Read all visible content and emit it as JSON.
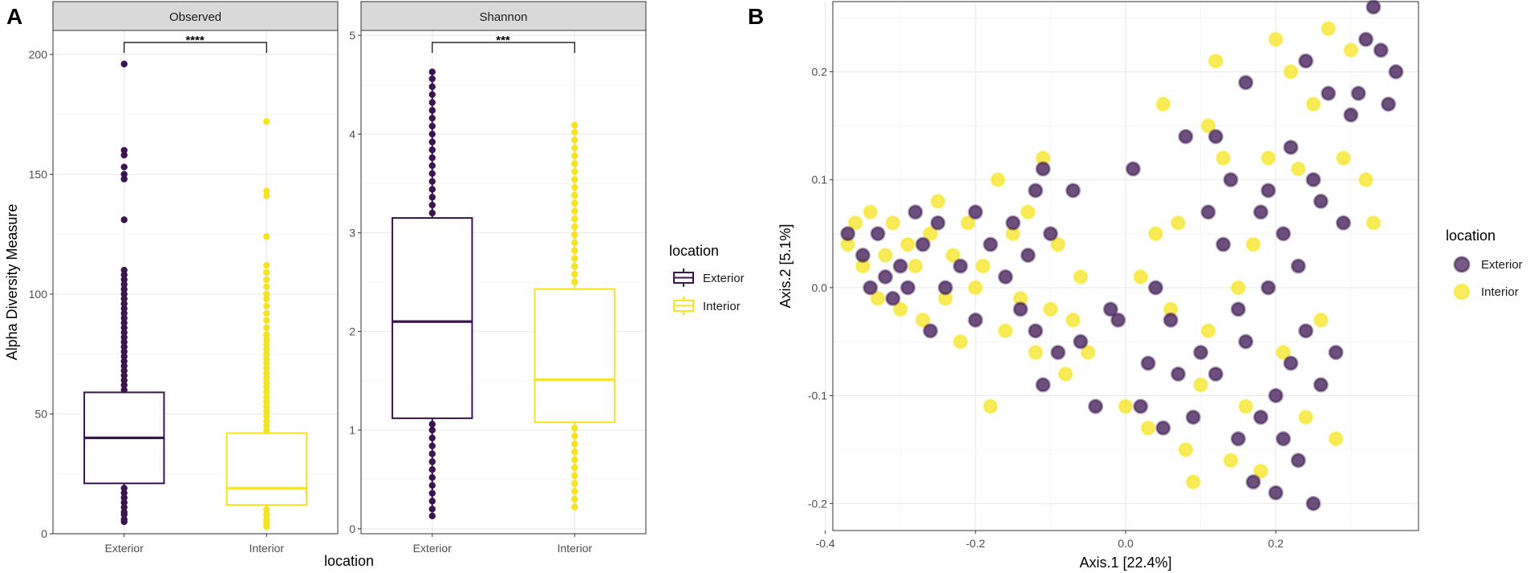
{
  "colors": {
    "exterior": "#3b1450",
    "interior": "#f5e41f",
    "grid": "#ebebeb",
    "strip_bg": "#d9d9d9",
    "border": "#333333"
  },
  "panel_a": {
    "label": "A",
    "y_axis_title": "Alpha Diversity Measure",
    "x_axis_title": "location",
    "legend": {
      "title": "location",
      "items": [
        "Exterior",
        "Interior"
      ]
    }
  },
  "panel_b": {
    "label": "B",
    "legend": {
      "title": "location",
      "items": [
        "Exterior",
        "Interior"
      ]
    }
  },
  "chart_data": [
    {
      "type": "box",
      "title": "Observed",
      "categories": [
        "Exterior",
        "Interior"
      ],
      "ylabel": "Alpha Diversity Measure",
      "xlabel": "location",
      "ylim": [
        0,
        210
      ],
      "yticks": [
        0,
        50,
        100,
        150,
        200
      ],
      "tick_labels": [
        "0",
        "50",
        "100",
        "150",
        "200"
      ],
      "boxes": [
        {
          "name": "Exterior",
          "q1": 21,
          "median": 40,
          "q3": 59,
          "whisker_low": 5,
          "whisker_high": 95,
          "outliers": [
            5,
            6,
            8,
            9,
            11,
            13,
            15,
            17,
            19,
            60,
            62,
            64,
            66,
            68,
            70,
            72,
            74,
            76,
            78,
            80,
            82,
            84,
            86,
            88,
            90,
            92,
            94,
            96,
            98,
            100,
            102,
            104,
            106,
            108,
            110,
            131,
            148,
            150,
            153,
            158,
            160,
            196
          ]
        },
        {
          "name": "Interior",
          "q1": 12,
          "median": 19,
          "q3": 42,
          "whisker_low": 3,
          "whisker_high": 85,
          "outliers": [
            3,
            4,
            5,
            6,
            8,
            10,
            43,
            45,
            47,
            49,
            51,
            53,
            55,
            57,
            59,
            61,
            63,
            65,
            67,
            69,
            71,
            73,
            75,
            77,
            79,
            81,
            83,
            86,
            89,
            92,
            95,
            98,
            100,
            103,
            106,
            109,
            112,
            124,
            141,
            143,
            172
          ]
        }
      ],
      "significance": "****"
    },
    {
      "type": "box",
      "title": "Shannon",
      "categories": [
        "Exterior",
        "Interior"
      ],
      "ylim": [
        -0.05,
        5.05
      ],
      "yticks": [
        0,
        1,
        2,
        3,
        4,
        5
      ],
      "tick_labels": [
        "0",
        "1",
        "2",
        "3",
        "4",
        "5"
      ],
      "boxes": [
        {
          "name": "Exterior",
          "q1": 1.12,
          "median": 2.1,
          "q3": 3.15,
          "whisker_low": 0.13,
          "whisker_high": 4.63,
          "outliers": [
            0.13,
            0.2,
            0.28,
            0.36,
            0.44,
            0.52,
            0.6,
            0.68,
            0.76,
            0.84,
            0.92,
            1.0,
            1.06,
            3.2,
            3.28,
            3.36,
            3.44,
            3.52,
            3.6,
            3.68,
            3.76,
            3.84,
            3.92,
            4.0,
            4.08,
            4.16,
            4.24,
            4.32,
            4.4,
            4.48,
            4.56,
            4.63
          ]
        },
        {
          "name": "Interior",
          "q1": 1.08,
          "median": 1.51,
          "q3": 2.43,
          "whisker_low": 0.22,
          "whisker_high": 4.09,
          "outliers": [
            0.22,
            0.3,
            0.38,
            0.46,
            0.54,
            0.62,
            0.7,
            0.78,
            0.86,
            0.94,
            1.02,
            2.5,
            2.58,
            2.66,
            2.74,
            2.82,
            2.9,
            2.98,
            3.06,
            3.14,
            3.22,
            3.3,
            3.38,
            3.46,
            3.54,
            3.62,
            3.7,
            3.78,
            3.86,
            3.94,
            4.02,
            4.09
          ]
        }
      ],
      "significance": "***"
    },
    {
      "type": "scatter",
      "xlabel": "Axis.1   [22.4%]",
      "ylabel": "Axis.2   [5.1%]",
      "xlim": [
        -0.39,
        0.39
      ],
      "ylim": [
        -0.225,
        0.265
      ],
      "xticks": [
        -0.4,
        -0.2,
        0.0,
        0.2
      ],
      "xtick_labels": [
        "-0.4",
        "-0.2",
        "0.0",
        "0.2"
      ],
      "yticks": [
        -0.2,
        -0.1,
        0.0,
        0.1,
        0.2
      ],
      "ytick_labels": [
        "-0.2",
        "-0.1",
        "0.0",
        "0.1",
        "0.2"
      ],
      "series": [
        {
          "name": "Exterior",
          "points": [
            [
              -0.37,
              0.05
            ],
            [
              -0.35,
              0.03
            ],
            [
              -0.34,
              0.0
            ],
            [
              -0.33,
              0.05
            ],
            [
              -0.32,
              0.01
            ],
            [
              -0.31,
              -0.01
            ],
            [
              -0.3,
              0.02
            ],
            [
              -0.29,
              0.0
            ],
            [
              -0.28,
              0.07
            ],
            [
              -0.27,
              0.04
            ],
            [
              -0.26,
              -0.04
            ],
            [
              -0.25,
              0.06
            ],
            [
              -0.24,
              0.0
            ],
            [
              -0.22,
              0.02
            ],
            [
              -0.2,
              0.07
            ],
            [
              -0.2,
              -0.03
            ],
            [
              -0.18,
              0.04
            ],
            [
              -0.16,
              0.01
            ],
            [
              -0.15,
              0.06
            ],
            [
              -0.14,
              -0.02
            ],
            [
              -0.13,
              0.03
            ],
            [
              -0.12,
              -0.04
            ],
            [
              -0.12,
              0.09
            ],
            [
              -0.11,
              0.11
            ],
            [
              -0.11,
              -0.09
            ],
            [
              -0.1,
              0.05
            ],
            [
              -0.09,
              -0.06
            ],
            [
              -0.07,
              0.09
            ],
            [
              -0.06,
              -0.05
            ],
            [
              -0.04,
              -0.11
            ],
            [
              -0.02,
              -0.02
            ],
            [
              -0.01,
              -0.03
            ],
            [
              0.01,
              0.11
            ],
            [
              0.02,
              -0.11
            ],
            [
              0.03,
              -0.07
            ],
            [
              0.04,
              0.0
            ],
            [
              0.05,
              -0.13
            ],
            [
              0.06,
              -0.03
            ],
            [
              0.07,
              -0.08
            ],
            [
              0.08,
              0.14
            ],
            [
              0.09,
              -0.12
            ],
            [
              0.1,
              -0.06
            ],
            [
              0.11,
              0.07
            ],
            [
              0.12,
              0.14
            ],
            [
              0.12,
              -0.08
            ],
            [
              0.13,
              0.04
            ],
            [
              0.14,
              0.1
            ],
            [
              0.15,
              -0.14
            ],
            [
              0.15,
              -0.02
            ],
            [
              0.16,
              0.19
            ],
            [
              0.16,
              -0.05
            ],
            [
              0.17,
              -0.18
            ],
            [
              0.18,
              0.07
            ],
            [
              0.18,
              -0.12
            ],
            [
              0.19,
              0.0
            ],
            [
              0.19,
              0.09
            ],
            [
              0.2,
              -0.1
            ],
            [
              0.2,
              -0.19
            ],
            [
              0.21,
              0.05
            ],
            [
              0.21,
              -0.14
            ],
            [
              0.22,
              0.13
            ],
            [
              0.22,
              -0.07
            ],
            [
              0.23,
              -0.16
            ],
            [
              0.23,
              0.02
            ],
            [
              0.24,
              0.21
            ],
            [
              0.24,
              -0.04
            ],
            [
              0.25,
              -0.2
            ],
            [
              0.25,
              0.1
            ],
            [
              0.26,
              0.08
            ],
            [
              0.26,
              -0.09
            ],
            [
              0.27,
              0.18
            ],
            [
              0.28,
              -0.06
            ],
            [
              0.29,
              0.06
            ],
            [
              0.3,
              0.16
            ],
            [
              0.31,
              0.18
            ],
            [
              0.32,
              0.23
            ],
            [
              0.33,
              0.26
            ],
            [
              0.34,
              0.22
            ],
            [
              0.35,
              0.17
            ],
            [
              0.36,
              0.2
            ]
          ]
        },
        {
          "name": "Interior",
          "points": [
            [
              -0.37,
              0.04
            ],
            [
              -0.36,
              0.06
            ],
            [
              -0.35,
              0.02
            ],
            [
              -0.34,
              0.07
            ],
            [
              -0.33,
              -0.01
            ],
            [
              -0.32,
              0.03
            ],
            [
              -0.31,
              0.06
            ],
            [
              -0.3,
              -0.02
            ],
            [
              -0.29,
              0.04
            ],
            [
              -0.28,
              0.02
            ],
            [
              -0.27,
              -0.03
            ],
            [
              -0.26,
              0.05
            ],
            [
              -0.25,
              0.08
            ],
            [
              -0.24,
              -0.01
            ],
            [
              -0.23,
              0.03
            ],
            [
              -0.22,
              -0.05
            ],
            [
              -0.21,
              0.06
            ],
            [
              -0.2,
              0.0
            ],
            [
              -0.19,
              0.02
            ],
            [
              -0.18,
              -0.11
            ],
            [
              -0.17,
              0.1
            ],
            [
              -0.16,
              -0.04
            ],
            [
              -0.15,
              0.05
            ],
            [
              -0.14,
              -0.01
            ],
            [
              -0.13,
              0.07
            ],
            [
              -0.12,
              -0.06
            ],
            [
              -0.11,
              0.12
            ],
            [
              -0.1,
              -0.02
            ],
            [
              -0.09,
              0.04
            ],
            [
              -0.08,
              -0.08
            ],
            [
              -0.07,
              -0.03
            ],
            [
              -0.06,
              0.01
            ],
            [
              -0.05,
              -0.06
            ],
            [
              0.0,
              -0.11
            ],
            [
              0.02,
              0.01
            ],
            [
              0.03,
              -0.13
            ],
            [
              0.04,
              0.05
            ],
            [
              0.05,
              0.17
            ],
            [
              0.06,
              -0.02
            ],
            [
              0.07,
              0.06
            ],
            [
              0.08,
              -0.15
            ],
            [
              0.09,
              -0.18
            ],
            [
              0.1,
              -0.09
            ],
            [
              0.11,
              0.15
            ],
            [
              0.11,
              -0.04
            ],
            [
              0.12,
              0.21
            ],
            [
              0.13,
              0.12
            ],
            [
              0.14,
              -0.16
            ],
            [
              0.15,
              0.0
            ],
            [
              0.16,
              -0.11
            ],
            [
              0.17,
              0.04
            ],
            [
              0.18,
              -0.17
            ],
            [
              0.19,
              0.12
            ],
            [
              0.2,
              0.23
            ],
            [
              0.21,
              -0.06
            ],
            [
              0.22,
              0.2
            ],
            [
              0.23,
              0.11
            ],
            [
              0.24,
              -0.12
            ],
            [
              0.25,
              0.17
            ],
            [
              0.26,
              -0.03
            ],
            [
              0.27,
              0.24
            ],
            [
              0.28,
              -0.14
            ],
            [
              0.29,
              0.12
            ],
            [
              0.3,
              0.22
            ],
            [
              0.32,
              0.1
            ],
            [
              0.33,
              0.06
            ]
          ]
        }
      ]
    }
  ]
}
